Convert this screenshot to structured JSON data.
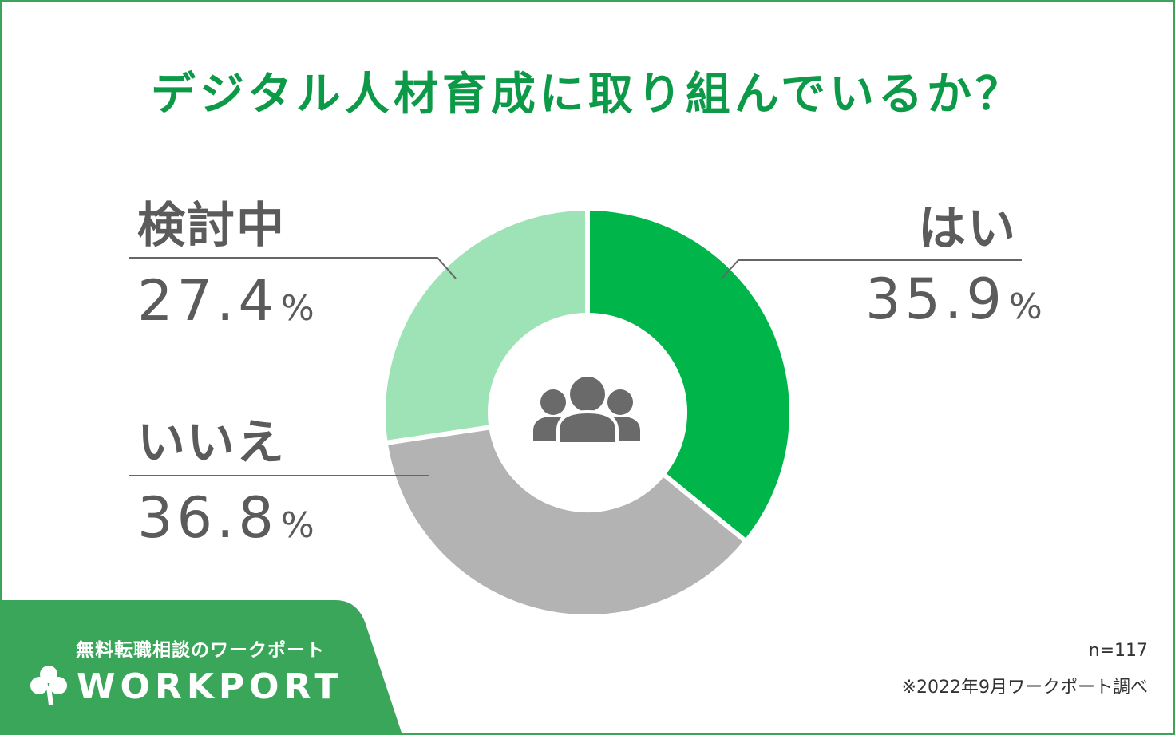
{
  "title": "デジタル人材育成に取り組んでいるか？",
  "chart_data": {
    "type": "pie",
    "title": "デジタル人材育成に取り組んでいるか？",
    "slices": [
      {
        "label": "はい",
        "value": 35.9,
        "display": "35.9",
        "unit": "%",
        "color": "#00b64a"
      },
      {
        "label": "いいえ",
        "value": 36.8,
        "display": "36.8",
        "unit": "%",
        "color": "#b3b3b3"
      },
      {
        "label": "検討中",
        "value": 27.4,
        "display": "27.4",
        "unit": "%",
        "color": "#9de3b5"
      }
    ]
  },
  "center_icon": "people-group-icon",
  "footer": {
    "brand_tagline": "無料転職相談のワークポート",
    "brand_logo_text": "WORKPORT",
    "sample_size": "n=117",
    "source_note": "※2022年9月ワークポート調べ"
  },
  "colors": {
    "accent": "#0d9a48",
    "frame": "#3aa65a",
    "text": "#5b5b5b"
  }
}
